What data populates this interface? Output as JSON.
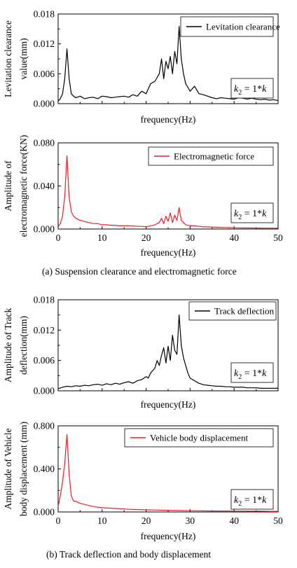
{
  "captions": {
    "a": "(a)    Suspension clearance and electromagnetic force",
    "b": "(b) Track deflection and body displacement"
  },
  "colors": {
    "black": "#000000",
    "red": "#ee1c25"
  },
  "chart_data": [
    {
      "type": "line",
      "ylabel_lines": [
        "Levitation clearance",
        "value(mm)"
      ],
      "xlabel": "frequency(Hz)",
      "legend": "Levitation clearance",
      "annotation": {
        "k": "k",
        "sub": "2",
        "eq": " = 1*",
        "k2": "k"
      },
      "ylim": [
        0,
        0.018
      ],
      "yticks": [
        "0.000",
        "0.006",
        "0.012",
        "0.018"
      ],
      "xlim": [
        0,
        50
      ],
      "xticks": [],
      "color": "#000000",
      "series": [
        {
          "name": "Levitation clearance",
          "x": [
            0,
            0.5,
            1,
            1.5,
            2,
            2.5,
            3,
            3.5,
            4,
            5,
            6,
            7,
            8,
            9,
            10,
            11,
            12,
            13,
            14,
            15,
            16,
            17,
            18,
            19,
            20,
            21,
            22,
            23,
            23.5,
            24,
            24.5,
            25,
            25.5,
            26,
            26.5,
            27,
            27.5,
            28,
            28.5,
            29,
            30,
            31,
            32,
            33,
            34,
            35,
            36,
            37,
            38,
            39,
            40,
            41,
            42,
            43,
            44,
            45,
            46,
            47,
            48,
            49,
            50
          ],
          "y": [
            0.0005,
            0.001,
            0.002,
            0.005,
            0.011,
            0.005,
            0.002,
            0.0015,
            0.0012,
            0.0015,
            0.001,
            0.0012,
            0.0013,
            0.001,
            0.0015,
            0.0014,
            0.0012,
            0.0013,
            0.0014,
            0.0015,
            0.0013,
            0.0018,
            0.0015,
            0.0025,
            0.002,
            0.004,
            0.0045,
            0.006,
            0.009,
            0.005,
            0.0085,
            0.007,
            0.0095,
            0.006,
            0.0105,
            0.008,
            0.0155,
            0.009,
            0.006,
            0.004,
            0.0025,
            0.0035,
            0.002,
            0.0018,
            0.0015,
            0.0012,
            0.001,
            0.0012,
            0.0011,
            0.001,
            0.0009,
            0.0012,
            0.0011,
            0.0009,
            0.0011,
            0.0009,
            0.0008,
            0.0009,
            0.0007,
            0.0008,
            0.0006
          ]
        }
      ]
    },
    {
      "type": "line",
      "ylabel_lines": [
        "Amplitude of",
        "electromagnetic force(KN)"
      ],
      "xlabel": "frequency(Hz)",
      "legend": "Electromagnetic force",
      "annotation": {
        "k": "k",
        "sub": "2",
        "eq": " = 1*",
        "k2": "k"
      },
      "ylim": [
        0,
        0.08
      ],
      "yticks": [
        "0.000",
        "0.040",
        "0.080"
      ],
      "xlim": [
        0,
        50
      ],
      "xticks": [
        "0",
        "10",
        "20",
        "30",
        "40",
        "50"
      ],
      "color": "#ee1c25",
      "series": [
        {
          "name": "Electromagnetic force",
          "x": [
            0,
            0.5,
            1,
            1.5,
            2,
            2.5,
            3,
            3.5,
            4,
            5,
            6,
            7,
            8,
            9,
            10,
            11,
            12,
            13,
            14,
            15,
            16,
            17,
            18,
            19,
            20,
            21,
            22,
            23,
            23.5,
            24,
            24.5,
            25,
            25.5,
            26,
            26.5,
            27,
            27.5,
            28,
            28.5,
            29,
            30,
            31,
            32,
            33,
            34,
            35,
            36,
            37,
            38,
            39,
            40,
            41,
            42,
            43,
            44,
            45,
            46,
            47,
            48,
            49,
            50
          ],
          "y": [
            0.002,
            0.005,
            0.012,
            0.03,
            0.068,
            0.03,
            0.016,
            0.012,
            0.01,
            0.008,
            0.007,
            0.006,
            0.005,
            0.005,
            0.004,
            0.004,
            0.0035,
            0.0035,
            0.003,
            0.003,
            0.003,
            0.0028,
            0.0025,
            0.0025,
            0.002,
            0.003,
            0.004,
            0.006,
            0.01,
            0.005,
            0.012,
            0.007,
            0.015,
            0.006,
            0.013,
            0.008,
            0.02,
            0.008,
            0.006,
            0.004,
            0.003,
            0.003,
            0.0025,
            0.002,
            0.002,
            0.0018,
            0.0016,
            0.0015,
            0.0014,
            0.0013,
            0.0012,
            0.0011,
            0.001,
            0.001,
            0.001,
            0.0009,
            0.0009,
            0.0008,
            0.0008,
            0.0008,
            0.0007
          ]
        }
      ]
    },
    {
      "type": "line",
      "ylabel_lines": [
        "Amplitude of Track",
        "deflection(mm)"
      ],
      "xlabel": "frequency(Hz)",
      "legend": "Track deflection",
      "annotation": {
        "k": "k",
        "sub": "2",
        "eq": " = 1*",
        "k2": "k"
      },
      "ylim": [
        0,
        0.018
      ],
      "yticks": [
        "0.000",
        "0.006",
        "0.012",
        "0.018"
      ],
      "xlim": [
        0,
        50
      ],
      "xticks": [],
      "color": "#000000",
      "series": [
        {
          "name": "Track deflection",
          "x": [
            0,
            1,
            2,
            3,
            4,
            5,
            6,
            7,
            8,
            9,
            10,
            11,
            12,
            13,
            14,
            15,
            16,
            17,
            18,
            19,
            20,
            20.5,
            21,
            21.5,
            22,
            22.5,
            23,
            23.5,
            24,
            24.5,
            25,
            25.5,
            26,
            26.5,
            27,
            27.5,
            28,
            28.5,
            29,
            29.5,
            30,
            31,
            32,
            33,
            34,
            35,
            36,
            37,
            38,
            39,
            40,
            41,
            42,
            43,
            44,
            45,
            46,
            47,
            48,
            49,
            50
          ],
          "y": [
            0.0004,
            0.0007,
            0.0009,
            0.0008,
            0.001,
            0.0009,
            0.0011,
            0.001,
            0.0012,
            0.0013,
            0.0011,
            0.0014,
            0.0012,
            0.0015,
            0.0013,
            0.0016,
            0.0018,
            0.0015,
            0.002,
            0.0022,
            0.0028,
            0.0025,
            0.0035,
            0.004,
            0.0045,
            0.006,
            0.005,
            0.007,
            0.0085,
            0.0055,
            0.0088,
            0.006,
            0.011,
            0.008,
            0.0072,
            0.015,
            0.009,
            0.0065,
            0.005,
            0.0035,
            0.0025,
            0.002,
            0.0015,
            0.0012,
            0.0011,
            0.001,
            0.0009,
            0.0009,
            0.0008,
            0.0008,
            0.0007,
            0.0007,
            0.0007,
            0.0006,
            0.0006,
            0.0006,
            0.0005,
            0.0005,
            0.0005,
            0.0005,
            0.0005
          ]
        }
      ]
    },
    {
      "type": "line",
      "ylabel_lines": [
        "Amplitude of Vehicle",
        "body displacement (mm)"
      ],
      "xlabel": "frequency(Hz)",
      "legend": "Vehicle body displacement",
      "annotation": {
        "k": "k",
        "sub": "2",
        "eq": " = 1*",
        "k2": "k"
      },
      "ylim": [
        0,
        0.8
      ],
      "yticks": [
        "0.000",
        "0.400",
        "0.800"
      ],
      "xlim": [
        0,
        50
      ],
      "xticks": [
        "0",
        "10",
        "20",
        "30",
        "40",
        "50"
      ],
      "color": "#ee1c25",
      "series": [
        {
          "name": "Vehicle body displacement",
          "x": [
            0,
            0.5,
            1,
            1.5,
            2,
            2.5,
            3,
            3.5,
            4,
            5,
            6,
            7,
            8,
            9,
            10,
            12,
            14,
            16,
            18,
            20,
            22,
            24,
            26,
            28,
            30,
            32,
            34,
            36,
            38,
            40,
            42,
            44,
            46,
            48,
            50
          ],
          "y": [
            0.05,
            0.15,
            0.28,
            0.45,
            0.72,
            0.35,
            0.15,
            0.1,
            0.1,
            0.08,
            0.07,
            0.06,
            0.05,
            0.045,
            0.04,
            0.035,
            0.03,
            0.025,
            0.022,
            0.02,
            0.018,
            0.016,
            0.015,
            0.013,
            0.012,
            0.011,
            0.01,
            0.009,
            0.009,
            0.008,
            0.008,
            0.007,
            0.007,
            0.006,
            0.006
          ]
        }
      ]
    }
  ]
}
